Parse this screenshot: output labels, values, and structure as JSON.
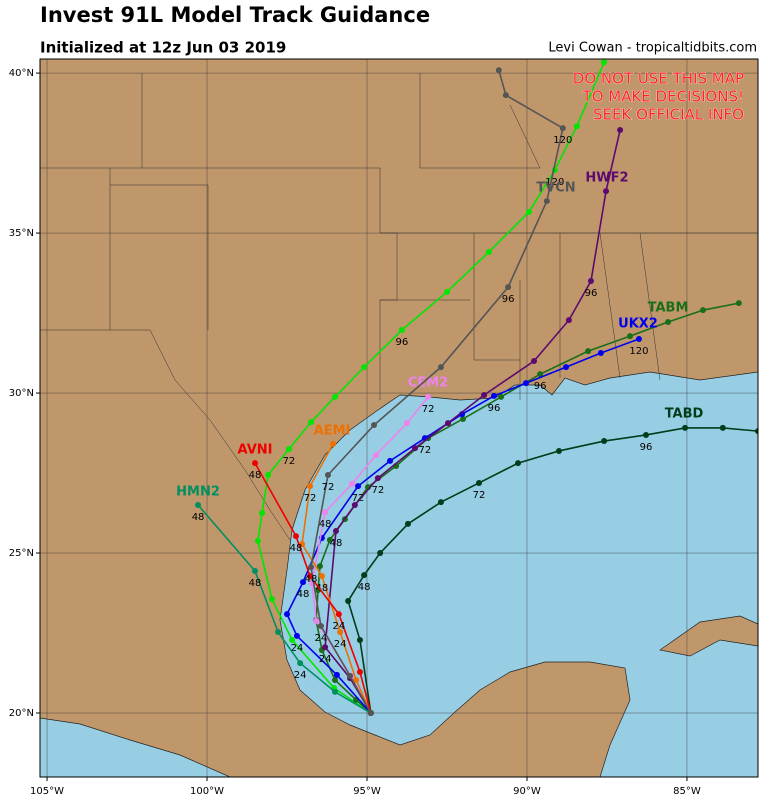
{
  "chart_data": {
    "type": "track",
    "title": "Invest 91L Model Track Guidance",
    "subtitle": "Initialized at 12z Jun 03 2019",
    "credit": "Levi Cowan - tropicaltidbits.com",
    "warning": [
      "DO NOT USE THIS MAP",
      "TO MAKE DECISIONS!",
      "SEEK OFFICIAL INFO"
    ],
    "xlim": [
      -105.22,
      -82.78
    ],
    "ylim": [
      18.0,
      40.44
    ],
    "xticks": [
      {
        "value": -105,
        "label": "105°W"
      },
      {
        "value": -100,
        "label": "100°W"
      },
      {
        "value": -95,
        "label": "95°W"
      },
      {
        "value": -90,
        "label": "90°W"
      },
      {
        "value": -85,
        "label": "85°W"
      }
    ],
    "yticks": [
      {
        "value": 20,
        "label": "20°N"
      },
      {
        "value": 25,
        "label": "25°N"
      },
      {
        "value": 30,
        "label": "30°N"
      },
      {
        "value": 35,
        "label": "35°N"
      },
      {
        "value": 40,
        "label": "40°N"
      }
    ],
    "grid": true,
    "series": [
      {
        "color": "#00e600",
        "x": [
          -94.88,
          -96.03,
          -97.34,
          -97.97,
          -98.41,
          -98.28,
          -98.09,
          -97.44,
          -96.75,
          -96.0,
          -95.09,
          -93.91,
          -92.5,
          -91.19,
          -89.94,
          -89.13,
          -88.44,
          -87.59
        ],
        "y": [
          20.0,
          20.78,
          22.28,
          23.56,
          25.38,
          26.25,
          27.44,
          28.25,
          29.09,
          29.88,
          30.81,
          31.97,
          33.16,
          34.41,
          35.66,
          36.97,
          38.34,
          40.34
        ],
        "hours": [
          null,
          null,
          null,
          null,
          null,
          null,
          null,
          72,
          null,
          null,
          null,
          96,
          null,
          null,
          null,
          120,
          null,
          null
        ]
      },
      {
        "name": "TABD",
        "color": "#003d1a",
        "x": [
          -94.88,
          -95.22,
          -95.59,
          -95.09,
          -94.59,
          -93.72,
          -92.69,
          -91.5,
          -90.28,
          -89.0,
          -87.59,
          -86.28,
          -85.06,
          -83.88,
          -82.78
        ],
        "y": [
          20.0,
          22.28,
          23.5,
          24.31,
          25.0,
          25.91,
          26.59,
          27.19,
          27.81,
          28.19,
          28.5,
          28.69,
          28.91,
          28.91,
          28.81
        ],
        "hours": [
          null,
          null,
          null,
          48,
          null,
          null,
          null,
          72,
          null,
          null,
          null,
          96,
          null,
          null,
          null
        ]
      },
      {
        "name": "TABM",
        "color": "#1a6e1a",
        "x": [
          -94.88,
          -95.34,
          -96.0,
          -96.41,
          -96.59,
          -96.53,
          -96.47,
          -96.16,
          -95.69,
          -94.97,
          -94.09,
          -93.09,
          -92.0,
          -90.81,
          -89.59,
          -88.09,
          -86.78,
          -85.59,
          -84.5,
          -83.38
        ],
        "y": [
          20.0,
          20.41,
          21.03,
          21.97,
          22.91,
          23.84,
          24.59,
          25.41,
          26.06,
          27.06,
          27.72,
          28.59,
          29.19,
          29.88,
          30.59,
          31.31,
          31.78,
          32.22,
          32.59,
          32.81
        ],
        "hours": [
          null,
          null,
          null,
          null,
          null,
          null,
          null,
          null,
          null,
          null,
          null,
          null,
          null,
          null,
          96,
          null,
          null,
          null,
          null,
          null
        ]
      },
      {
        "name": "UKX2",
        "color": "#0000ee",
        "x": [
          -94.88,
          -95.94,
          -97.19,
          -97.5,
          -97.0,
          -96.41,
          -95.28,
          -94.28,
          -93.19,
          -92.03,
          -91.03,
          -90.03,
          -88.78,
          -87.69,
          -86.5
        ],
        "y": [
          20.0,
          21.19,
          22.41,
          23.09,
          24.09,
          25.47,
          27.09,
          27.88,
          28.59,
          29.34,
          29.91,
          30.31,
          30.81,
          31.25,
          31.69
        ],
        "hours": [
          null,
          null,
          24,
          null,
          48,
          null,
          72,
          null,
          72,
          null,
          96,
          null,
          null,
          null,
          120
        ]
      },
      {
        "name": "HWF2",
        "color": "#5c0a6e",
        "x": [
          -94.88,
          -95.53,
          -96.31,
          -95.97,
          -95.38,
          -94.66,
          -93.5,
          -92.47,
          -91.34,
          -89.78,
          -88.69,
          -88.0,
          -87.53,
          -87.09
        ],
        "y": [
          20.0,
          21.09,
          22.06,
          25.69,
          26.5,
          27.34,
          28.28,
          29.06,
          29.94,
          31.0,
          32.28,
          33.5,
          36.31,
          38.22
        ],
        "hours": [
          null,
          null,
          24,
          48,
          null,
          72,
          null,
          null,
          null,
          null,
          null,
          96,
          null,
          null
        ]
      },
      {
        "name": "CEM2",
        "color": "#ee82ee",
        "x": [
          -94.88,
          -95.5,
          -96.59,
          -96.72,
          -96.31,
          -95.47,
          -94.72,
          -93.75,
          -93.09
        ],
        "y": [
          20.0,
          21.16,
          22.88,
          24.06,
          26.28,
          27.16,
          28.06,
          29.06,
          29.88
        ],
        "hours": [
          null,
          null,
          null,
          null,
          48,
          null,
          null,
          null,
          72
        ]
      },
      {
        "name": "AEMI",
        "color": "#ee7000",
        "x": [
          -94.88,
          -95.34,
          -95.84,
          -96.41,
          -97.03,
          -96.78,
          -96.06
        ],
        "y": [
          20.0,
          21.03,
          22.53,
          24.28,
          25.28,
          27.09,
          28.41
        ],
        "hours": [
          null,
          null,
          24,
          48,
          null,
          72,
          null
        ]
      },
      {
        "name": "AVNI",
        "color": "#ee0000",
        "x": [
          -94.88,
          -95.22,
          -95.88,
          -96.78,
          -97.22,
          -98.5
        ],
        "y": [
          20.0,
          21.28,
          23.09,
          24.28,
          25.53,
          27.81
        ],
        "hours": [
          null,
          null,
          24,
          null,
          48,
          48
        ]
      },
      {
        "name": "HMN2",
        "color": "#009060",
        "x": [
          -94.88,
          -96.0,
          -97.09,
          -97.78,
          -98.5,
          -100.28
        ],
        "y": [
          20.0,
          20.66,
          21.56,
          22.53,
          24.44,
          26.5
        ],
        "hours": [
          null,
          null,
          24,
          null,
          48,
          48
        ]
      },
      {
        "name": "TVCN",
        "color": "#555555",
        "x": [
          -94.88,
          -95.53,
          -96.44,
          -96.75,
          -96.22,
          -94.78,
          -92.69,
          -90.59,
          -89.38,
          -88.88,
          -90.66,
          -90.88
        ],
        "y": [
          20.0,
          21.16,
          22.72,
          24.56,
          27.44,
          29.0,
          30.81,
          33.31,
          36.0,
          38.28,
          39.31,
          40.09
        ],
        "hours": [
          null,
          null,
          24,
          48,
          72,
          null,
          null,
          96,
          null,
          120,
          null,
          null
        ]
      }
    ]
  }
}
